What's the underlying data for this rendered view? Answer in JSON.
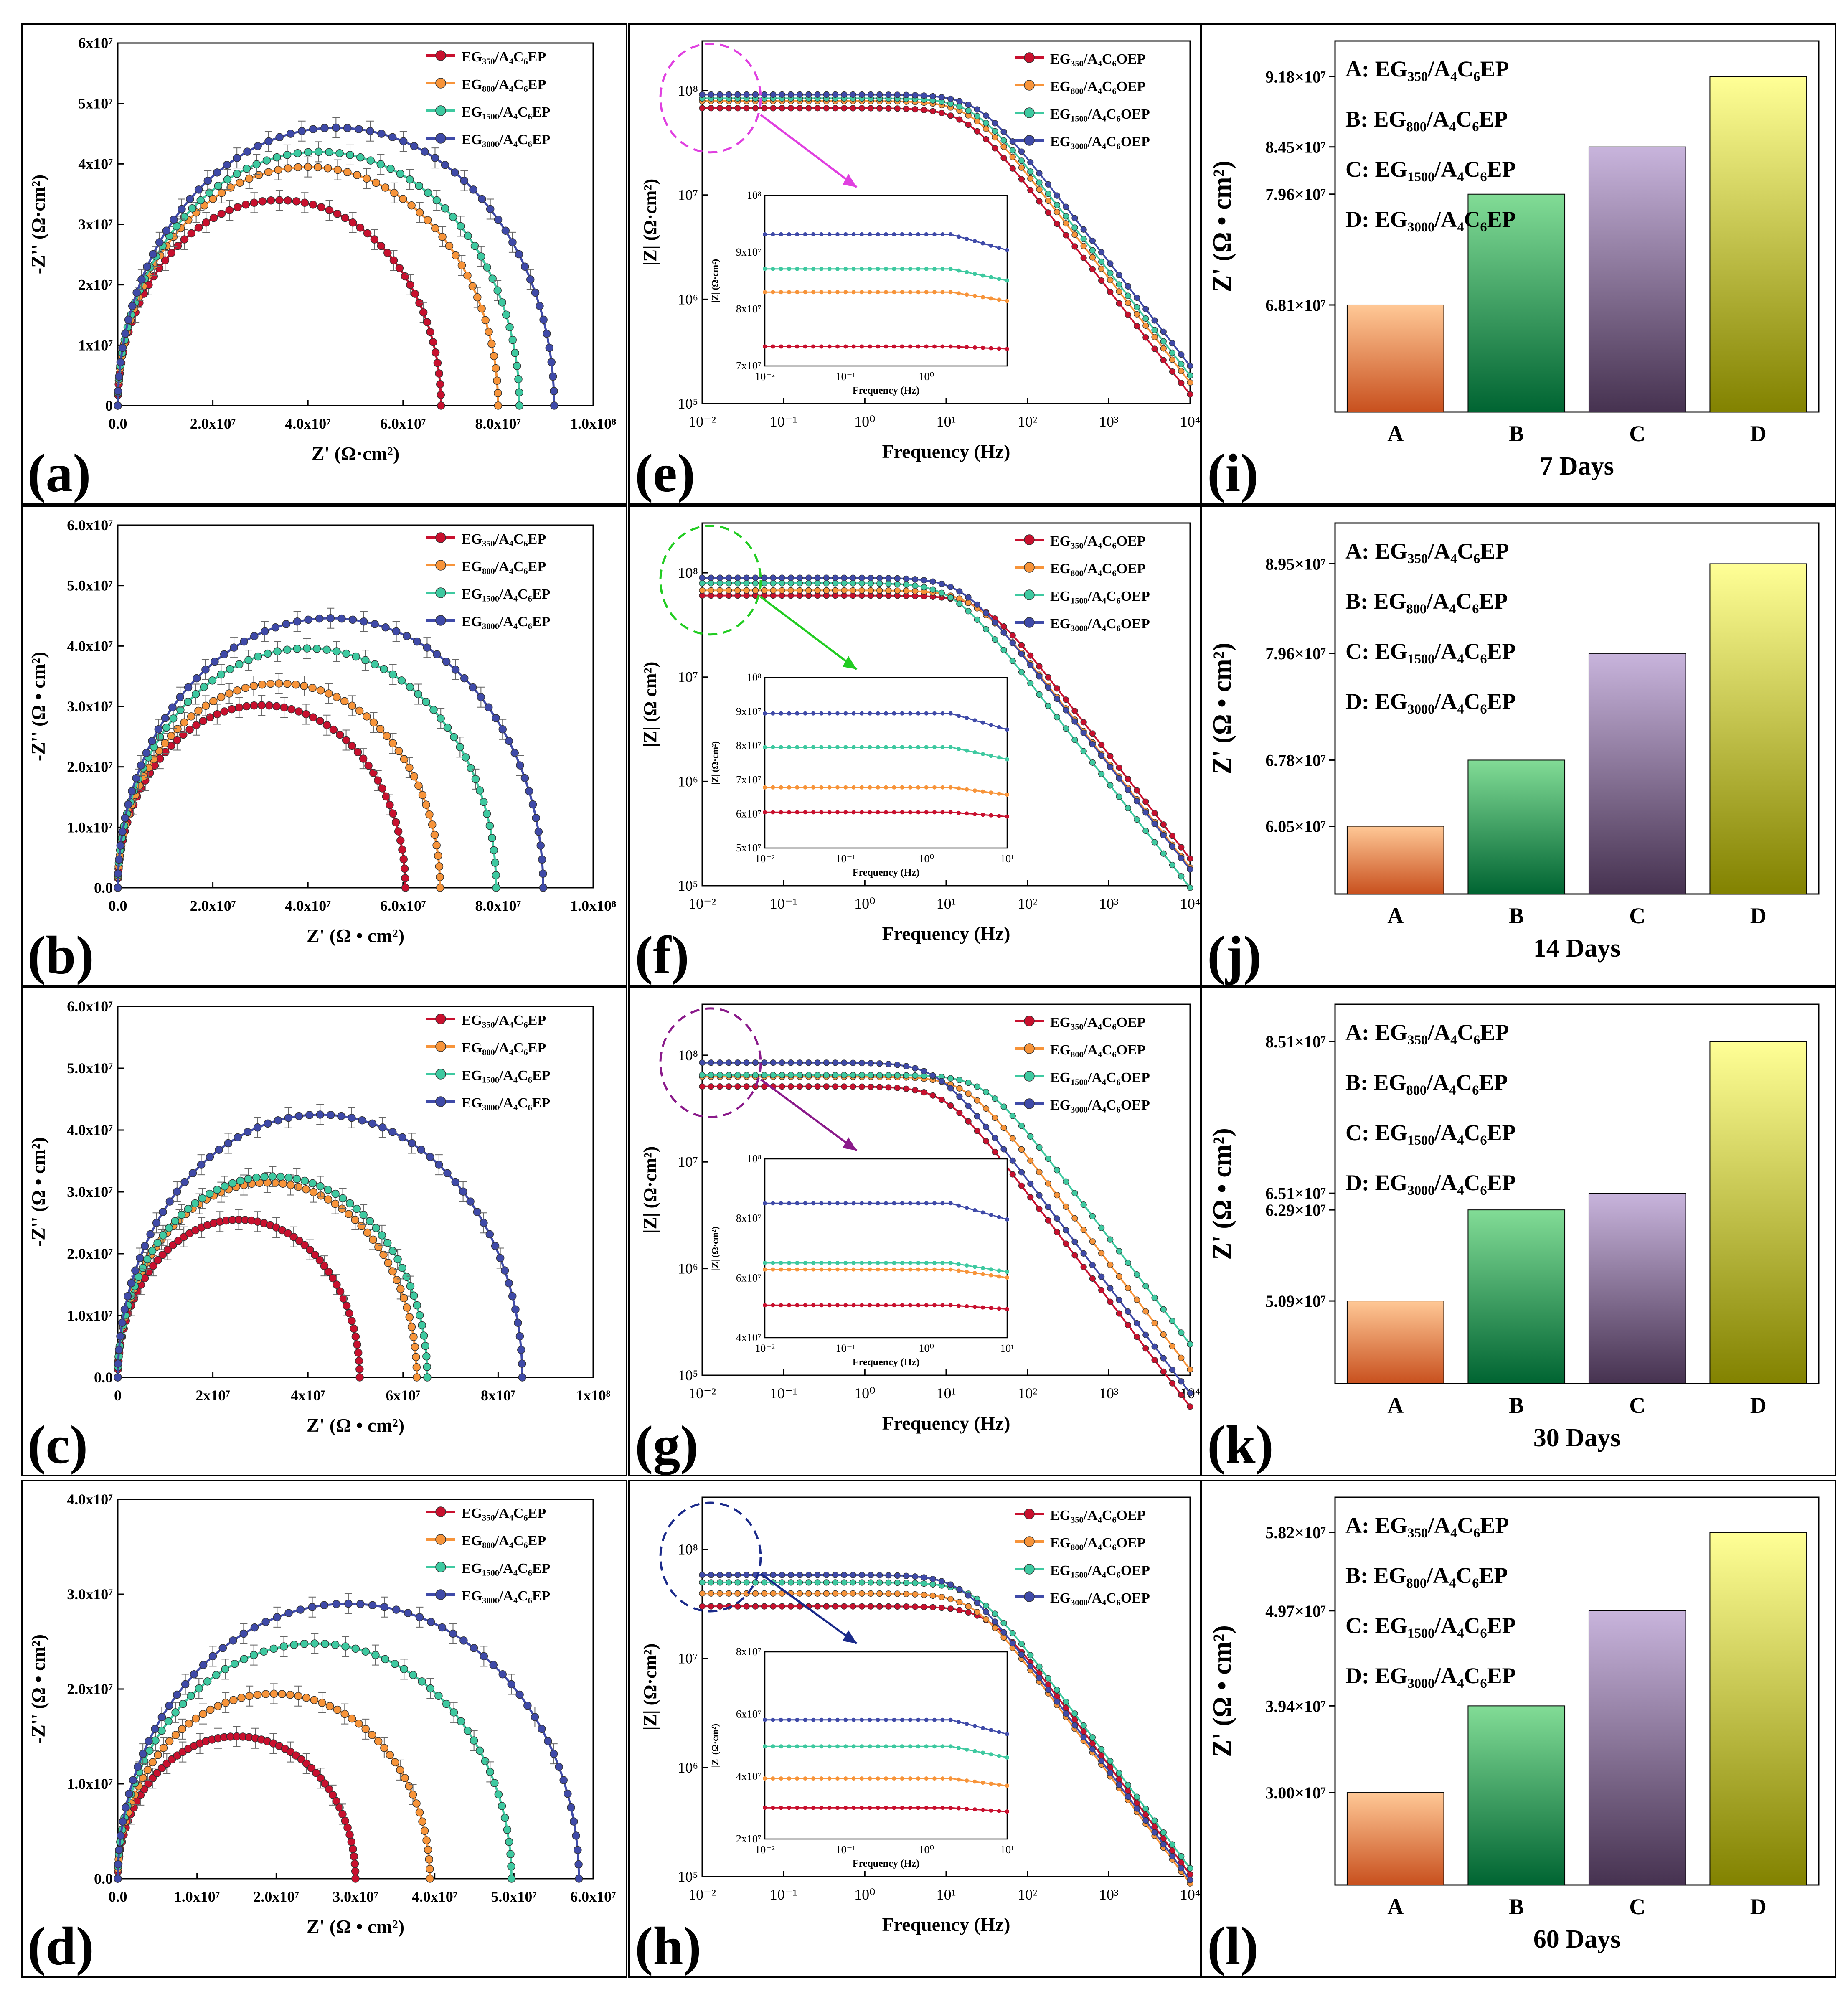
{
  "series_colors": {
    "EG350": "#c8102e",
    "EG800": "#f7943a",
    "EG1500": "#3ec9a0",
    "EG3000": "#3f4aa8"
  },
  "circle_colors": [
    "#e040e0",
    "#22cc22",
    "#8a1a8a",
    "#1a2a8a"
  ],
  "bar_gradients": {
    "A": [
      "#ffc896",
      "#c8501e"
    ],
    "B": [
      "#82dc96",
      "#006432"
    ],
    "C": [
      "#c8b4dc",
      "#463250"
    ],
    "D": [
      "#ffff96",
      "#828200"
    ]
  },
  "chart_data": [
    {
      "type": "line",
      "panel": "(a)",
      "xlabel": "Z' (Ω·cm²)",
      "ylabel": "-Z'' (Ω·cm²)",
      "xlim": [
        0,
        100000000.0
      ],
      "ylim": [
        0,
        60000000.0
      ],
      "xticks": [
        "0.0",
        "2.0x10⁷",
        "4.0x10⁷",
        "6.0x10⁷",
        "8.0x10⁷",
        "1.0x10⁸"
      ],
      "yticks": [
        "0",
        "1x10⁷",
        "2x10⁷",
        "3x10⁷",
        "4x10⁷",
        "5x10⁷",
        "6x10⁷"
      ],
      "legend": [
        "EG₃₅₀/A₄C₆EP",
        "EG₈₀₀/A₄C₆EP",
        "EG₁₅₀₀/A₄C₆EP",
        "EG₃₀₀₀/A₄C₆EP"
      ],
      "series": [
        {
          "name": "EG350",
          "diameter": 68000000.0,
          "peak": 34000000.0
        },
        {
          "name": "EG800",
          "diameter": 80000000.0,
          "peak": 39500000.0
        },
        {
          "name": "EG1500",
          "diameter": 84500000.0,
          "peak": 42000000.0
        },
        {
          "name": "EG3000",
          "diameter": 91800000.0,
          "peak": 46000000.0
        }
      ]
    },
    {
      "type": "line",
      "panel": "(b)",
      "xlabel": "Z' (Ω • cm²)",
      "ylabel": "-Z'' (Ω • cm²)",
      "xlim": [
        0,
        100000000.0
      ],
      "ylim": [
        0,
        60000000.0
      ],
      "xticks": [
        "0.0",
        "2.0x10⁷",
        "4.0x10⁷",
        "6.0x10⁷",
        "8.0x10⁷",
        "1.0x10⁸"
      ],
      "yticks": [
        "0.0",
        "1.0x10⁷",
        "2.0x10⁷",
        "3.0x10⁷",
        "4.0x10⁷",
        "5.0x10⁷",
        "6.0x10⁷"
      ],
      "legend": [
        "EG₃₅₀/A₄C₆EP",
        "EG₈₀₀/A₄C₆EP",
        "EG₁₅₀₀/A₄C₆EP",
        "EG₃₀₀₀/A₄C₆EP"
      ],
      "series": [
        {
          "name": "EG350",
          "diameter": 60500000.0,
          "peak": 30200000.0
        },
        {
          "name": "EG800",
          "diameter": 67800000.0,
          "peak": 33800000.0
        },
        {
          "name": "EG1500",
          "diameter": 79600000.0,
          "peak": 39600000.0
        },
        {
          "name": "EG3000",
          "diameter": 89500000.0,
          "peak": 44600000.0
        }
      ]
    },
    {
      "type": "line",
      "panel": "(c)",
      "xlabel": "Z' (Ω • cm²)",
      "ylabel": "-Z'' (Ω • cm²)",
      "xlim": [
        0,
        100000000.0
      ],
      "ylim": [
        0,
        60000000.0
      ],
      "xticks": [
        "0",
        "2x10⁷",
        "4x10⁷",
        "6x10⁷",
        "8x10⁷",
        "1x10⁸"
      ],
      "yticks": [
        "0.0",
        "1.0x10⁷",
        "2.0x10⁷",
        "3.0x10⁷",
        "4.0x10⁷",
        "5.0x10⁷",
        "6.0x10⁷"
      ],
      "legend": [
        "EG₃₅₀/A₄C₆EP",
        "EG₈₀₀/A₄C₆EP",
        "EG₁₅₀₀/A₄C₆EP",
        "EG₃₀₀₀/A₄C₆EP"
      ],
      "series": [
        {
          "name": "EG350",
          "diameter": 50900000.0,
          "peak": 25500000.0
        },
        {
          "name": "EG800",
          "diameter": 62900000.0,
          "peak": 31500000.0
        },
        {
          "name": "EG1500",
          "diameter": 65100000.0,
          "peak": 32500000.0
        },
        {
          "name": "EG3000",
          "diameter": 85100000.0,
          "peak": 42500000.0
        }
      ]
    },
    {
      "type": "line",
      "panel": "(d)",
      "xlabel": "Z' (Ω • cm²)",
      "ylabel": "-Z'' (Ω • cm²)",
      "xlim": [
        0,
        60000000.0
      ],
      "ylim": [
        0,
        40000000.0
      ],
      "xticks": [
        "0.0",
        "1.0x10⁷",
        "2.0x10⁷",
        "3.0x10⁷",
        "4.0x10⁷",
        "5.0x10⁷",
        "6.0x10⁷"
      ],
      "yticks": [
        "0.0",
        "1.0x10⁷",
        "2.0x10⁷",
        "3.0x10⁷",
        "4.0x10⁷"
      ],
      "legend": [
        "EG₃₅₀/A₄C₆EP",
        "EG₈₀₀/A₄C₆EP",
        "EG₁₅₀₀/A₄C₆EP",
        "EG₃₀₀₀/A₄C₆EP"
      ],
      "series": [
        {
          "name": "EG350",
          "diameter": 30000000.0,
          "peak": 15000000.0
        },
        {
          "name": "EG800",
          "diameter": 39400000.0,
          "peak": 19500000.0
        },
        {
          "name": "EG1500",
          "diameter": 49700000.0,
          "peak": 24800000.0
        },
        {
          "name": "EG3000",
          "diameter": 58200000.0,
          "peak": 29000000.0
        }
      ]
    },
    {
      "type": "line",
      "panel": "(e)",
      "xlabel": "Frequency (Hz)",
      "ylabel": "|Z| (Ω·cm²)",
      "xscale": "log",
      "xlim": [
        0.01,
        10000
      ],
      "ylim": [
        100000,
        300000000
      ],
      "xticks": [
        "10⁻²",
        "10⁻¹",
        "10⁰",
        "10¹",
        "10²",
        "10³",
        "10⁴"
      ],
      "yticks": [
        "10⁵",
        "10⁶",
        "10⁷",
        "10⁸"
      ],
      "legend": [
        "EG₃₅₀/A₄C₆OEP",
        "EG₈₀₀/A₄C₆OEP",
        "EG₁₅₀₀/A₄C₆OEP",
        "EG₃₀₀₀/A₄C₆OEP"
      ],
      "series": [
        {
          "name": "EG350",
          "plateau": 68100000.0,
          "corner_hz": 18
        },
        {
          "name": "EG800",
          "plateau": 79600000.0,
          "corner_hz": 20
        },
        {
          "name": "EG1500",
          "plateau": 84500000.0,
          "corner_hz": 22
        },
        {
          "name": "EG3000",
          "plateau": 91800000.0,
          "corner_hz": 25
        }
      ],
      "inset": {
        "xlabel": "Frequency (Hz)",
        "ylabel": "|Z| (Ω·cm²)",
        "xlim": [
          0.01,
          10
        ],
        "ylim": [
          64000000.0,
          100000000.0
        ],
        "xticks": [
          "10⁻²",
          "10⁻¹",
          "10⁰"
        ],
        "yticks": [
          "7x10⁷",
          "8x10⁷",
          "9x10⁷",
          "10⁸"
        ],
        "plateaus": [
          68100000.0,
          79600000.0,
          84500000.0,
          91800000.0
        ]
      }
    },
    {
      "type": "line",
      "panel": "(f)",
      "xlabel": "Frequency (Hz)",
      "ylabel": "|Z| (Ω cm²)",
      "xscale": "log",
      "xlim": [
        0.01,
        10000
      ],
      "ylim": [
        100000,
        300000000
      ],
      "xticks": [
        "10⁻²",
        "10⁻¹",
        "10⁰",
        "10¹",
        "10²",
        "10³",
        "10⁴"
      ],
      "yticks": [
        "10⁵",
        "10⁶",
        "10⁷",
        "10⁸"
      ],
      "legend": [
        "EG₃₅₀/A₄C₆OEP",
        "EG₈₀₀/A₄C₆OEP",
        "EG₁₅₀₀/A₄C₆OEP",
        "EG₃₀₀₀/A₄C₆OEP"
      ],
      "series": [
        {
          "name": "EG350",
          "plateau": 60500000.0,
          "corner_hz": 30
        },
        {
          "name": "EG800",
          "plateau": 67800000.0,
          "corner_hz": 22
        },
        {
          "name": "EG1500",
          "plateau": 79600000.0,
          "corner_hz": 12
        },
        {
          "name": "EG3000",
          "plateau": 89500000.0,
          "corner_hz": 16
        }
      ],
      "inset": {
        "xlabel": "Frequency (Hz)",
        "ylabel": "|Z| (Ω·cm²)",
        "xlim": [
          0.01,
          10
        ],
        "ylim": [
          50000000.0,
          100000000.0
        ],
        "xticks": [
          "10⁻²",
          "10⁻¹",
          "10⁰",
          "10¹"
        ],
        "yticks": [
          "5x10⁷",
          "6x10⁷",
          "7x10⁷",
          "8x10⁷",
          "9x10⁷",
          "10⁸"
        ],
        "plateaus": [
          60500000.0,
          67800000.0,
          79600000.0,
          89500000.0
        ]
      }
    },
    {
      "type": "line",
      "panel": "(g)",
      "xlabel": "Frequency (Hz)",
      "ylabel": "|Z| (Ω·cm²)",
      "xscale": "log",
      "xlim": [
        0.01,
        10000
      ],
      "ylim": [
        100000,
        300000000
      ],
      "xticks": [
        "10⁻²",
        "10⁻¹",
        "10⁰",
        "10¹",
        "10²",
        "10³",
        "10⁴"
      ],
      "yticks": [
        "10⁵",
        "10⁶",
        "10⁷",
        "10⁸"
      ],
      "legend": [
        "EG₃₅₀/A₄C₆OEP",
        "EG₈₀₀/A₄C₆OEP",
        "EG₁₅₀₀/A₄C₆OEP",
        "EG₃₀₀₀/A₄C₆OEP"
      ],
      "series": [
        {
          "name": "EG350",
          "plateau": 50900000.0,
          "corner_hz": 10
        },
        {
          "name": "EG800",
          "plateau": 62900000.0,
          "corner_hz": 18
        },
        {
          "name": "EG1500",
          "plateau": 65100000.0,
          "corner_hz": 30
        },
        {
          "name": "EG3000",
          "plateau": 85100000.0,
          "corner_hz": 8
        }
      ],
      "inset": {
        "xlabel": "Frequency (Hz)",
        "ylabel": "|Z| (Ω·cm²)",
        "xlim": [
          0.01,
          10
        ],
        "ylim": [
          40000000.0,
          100000000.0
        ],
        "xticks": [
          "10⁻²",
          "10⁻¹",
          "10⁰",
          "10¹"
        ],
        "yticks": [
          "4x10⁷",
          "6x10⁷",
          "8x10⁷",
          "10⁸"
        ],
        "plateaus": [
          50900000.0,
          62900000.0,
          65100000.0,
          85100000.0
        ]
      }
    },
    {
      "type": "line",
      "panel": "(h)",
      "xlabel": "Frequency (Hz)",
      "ylabel": "|Z| (Ω·cm²)",
      "xscale": "log",
      "xlim": [
        0.01,
        10000
      ],
      "ylim": [
        100000,
        300000000
      ],
      "xticks": [
        "10⁻²",
        "10⁻¹",
        "10⁰",
        "10¹",
        "10²",
        "10³",
        "10⁴"
      ],
      "yticks": [
        "10⁵",
        "10⁶",
        "10⁷",
        "10⁸"
      ],
      "legend": [
        "EG₃₅₀/A₄C₆OEP",
        "EG₈₀₀/A₄C₆OEP",
        "EG₁₅₀₀/A₄C₆OEP",
        "EG₃₀₀₀/A₄C₆OEP"
      ],
      "series": [
        {
          "name": "EG350",
          "plateau": 30000000.0,
          "corner_hz": 35
        },
        {
          "name": "EG800",
          "plateau": 39400000.0,
          "corner_hz": 22
        },
        {
          "name": "EG1500",
          "plateau": 49700000.0,
          "corner_hz": 24
        },
        {
          "name": "EG3000",
          "plateau": 58200000.0,
          "corner_hz": 16
        }
      ],
      "inset": {
        "xlabel": "Frequency (Hz)",
        "ylabel": "|Z| (Ω·cm²)",
        "xlim": [
          0.01,
          10
        ],
        "ylim": [
          20000000.0,
          80000000.0
        ],
        "xticks": [
          "10⁻²",
          "10⁻¹",
          "10⁰",
          "10¹"
        ],
        "yticks": [
          "2x10⁷",
          "4x10⁷",
          "6x10⁷",
          "8x10⁷"
        ],
        "plateaus": [
          30000000.0,
          39400000.0,
          49700000.0,
          58200000.0
        ]
      }
    },
    {
      "type": "bar",
      "panel": "(i)",
      "title": "7 Days",
      "ylabel": "Z' (Ω • cm²)",
      "categories": [
        "A",
        "B",
        "C",
        "D"
      ],
      "values": [
        68100000.0,
        79600000.0,
        84500000.0,
        91800000.0
      ],
      "ylim": [
        57000000.0,
        95500000.0
      ],
      "yticks": [
        {
          "value": 68100000.0,
          "label": "6.81×10⁷"
        },
        {
          "value": 79600000.0,
          "label": "7.96×10⁷"
        },
        {
          "value": 84500000.0,
          "label": "8.45×10⁷"
        },
        {
          "value": 91800000.0,
          "label": "9.18×10⁷"
        }
      ],
      "legend": [
        "A: EG₃₅₀/A₄C₆EP",
        "B: EG₈₀₀/A₄C₆EP",
        "C: EG₁₅₀₀/A₄C₆EP",
        "D: EG₃₀₀₀/A₄C₆EP"
      ]
    },
    {
      "type": "bar",
      "panel": "(j)",
      "title": "14 Days",
      "ylabel": "Z' (Ω • cm²)",
      "categories": [
        "A",
        "B",
        "C",
        "D"
      ],
      "values": [
        60500000.0,
        67800000.0,
        79600000.0,
        89500000.0
      ],
      "ylim": [
        53000000.0,
        94000000.0
      ],
      "yticks": [
        {
          "value": 60500000.0,
          "label": "6.05×10⁷"
        },
        {
          "value": 67800000.0,
          "label": "6.78×10⁷"
        },
        {
          "value": 79600000.0,
          "label": "7.96×10⁷"
        },
        {
          "value": 89500000.0,
          "label": "8.95×10⁷"
        }
      ],
      "legend": [
        "A: EG₃₅₀/A₄C₆EP",
        "B: EG₈₀₀/A₄C₆EP",
        "C: EG₁₅₀₀/A₄C₆EP",
        "D: EG₃₀₀₀/A₄C₆EP"
      ]
    },
    {
      "type": "bar",
      "panel": "(k)",
      "title": "30 Days",
      "ylabel": "Z' (Ω • cm²)",
      "categories": [
        "A",
        "B",
        "C",
        "D"
      ],
      "values": [
        50900000.0,
        62900000.0,
        65100000.0,
        85100000.0
      ],
      "ylim": [
        40000000.0,
        90000000.0
      ],
      "yticks": [
        {
          "value": 50900000.0,
          "label": "5.09×10⁷"
        },
        {
          "value": 62900000.0,
          "label": "6.29×10⁷"
        },
        {
          "value": 65100000.0,
          "label": "6.51×10⁷"
        },
        {
          "value": 85100000.0,
          "label": "8.51×10⁷"
        }
      ],
      "legend": [
        "A: EG₃₅₀/A₄C₆EP",
        "B: EG₈₀₀/A₄C₆EP",
        "C: EG₁₅₀₀/A₄C₆EP",
        "D: EG₃₀₀₀/A₄C₆EP"
      ]
    },
    {
      "type": "bar",
      "panel": "(l)",
      "title": "60 Days",
      "ylabel": "Z' (Ω • cm²)",
      "categories": [
        "A",
        "B",
        "C",
        "D"
      ],
      "values": [
        30000000.0,
        39400000.0,
        49700000.0,
        58200000.0
      ],
      "ylim": [
        20000000.0,
        62000000.0
      ],
      "yticks": [
        {
          "value": 30000000.0,
          "label": "3.00×10⁷"
        },
        {
          "value": 39400000.0,
          "label": "3.94×10⁷"
        },
        {
          "value": 49700000.0,
          "label": "4.97×10⁷"
        },
        {
          "value": 58200000.0,
          "label": "5.82×10⁷"
        }
      ],
      "legend": [
        "A: EG₃₅₀/A₄C₆EP",
        "B: EG₈₀₀/A₄C₆EP",
        "C: EG₁₅₀₀/A₄C₆EP",
        "D: EG₃₀₀₀/A₄C₆EP"
      ]
    }
  ]
}
